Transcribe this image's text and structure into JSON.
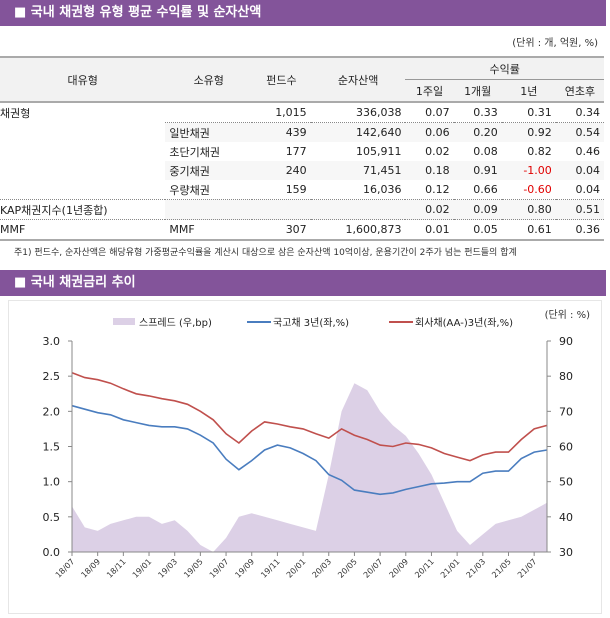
{
  "section1": {
    "title": "■ 국내 채권형 유형 평균 수익률 및 순자산액",
    "unit": "(단위 : 개, 억원, %)"
  },
  "table": {
    "headers": {
      "major": "대유형",
      "minor": "소유형",
      "funds": "펀드수",
      "assets": "순자산액",
      "returns": "수익률",
      "w1": "1주일",
      "m1": "1개월",
      "y1": "1년",
      "ytd": "연초후"
    },
    "rows": [
      {
        "major": "채권형",
        "minor": "",
        "funds": "1,015",
        "assets": "336,038",
        "w1": "0.07",
        "m1": "0.33",
        "y1": "0.31",
        "ytd": "0.34"
      },
      {
        "major": "",
        "minor": "일반채권",
        "funds": "439",
        "assets": "142,640",
        "w1": "0.06",
        "m1": "0.20",
        "y1": "0.92",
        "ytd": "0.54"
      },
      {
        "major": "",
        "minor": "초단기채권",
        "funds": "177",
        "assets": "105,911",
        "w1": "0.02",
        "m1": "0.08",
        "y1": "0.82",
        "ytd": "0.46"
      },
      {
        "major": "",
        "minor": "중기채권",
        "funds": "240",
        "assets": "71,451",
        "w1": "0.18",
        "m1": "0.91",
        "y1": "-1.00",
        "ytd": "0.04"
      },
      {
        "major": "",
        "minor": "우량채권",
        "funds": "159",
        "assets": "16,036",
        "w1": "0.12",
        "m1": "0.66",
        "y1": "-0.60",
        "ytd": "0.04"
      },
      {
        "major": "KAP채권지수(1년종합)",
        "minor": "",
        "funds": "",
        "assets": "",
        "w1": "0.02",
        "m1": "0.09",
        "y1": "0.80",
        "ytd": "0.51"
      },
      {
        "major": "MMF",
        "minor": "MMF",
        "funds": "307",
        "assets": "1,600,873",
        "w1": "0.01",
        "m1": "0.05",
        "y1": "0.61",
        "ytd": "0.36"
      }
    ],
    "note": "주1) 펀드수, 순자산액은 해당유형 가중평균수익률을 계산시 대상으로 삼은 순자산액 10억이상, 운용기간이 2주가 넘는 펀드들의 합계"
  },
  "section2": {
    "title": "■ 국내 채권금리 추이",
    "unit": "(단위 : %)"
  },
  "chart_data": {
    "type": "line",
    "x": [
      "18/07",
      "18/08",
      "18/09",
      "18/10",
      "18/11",
      "18/12",
      "19/01",
      "19/02",
      "19/03",
      "19/04",
      "19/05",
      "19/06",
      "19/07",
      "19/08",
      "19/09",
      "19/10",
      "19/11",
      "19/12",
      "20/01",
      "20/02",
      "20/03",
      "20/04",
      "20/05",
      "20/06",
      "20/07",
      "20/08",
      "20/09",
      "20/10",
      "20/11",
      "20/12",
      "21/01",
      "21/02",
      "21/03",
      "21/04",
      "21/05",
      "21/06",
      "21/07",
      "21/08"
    ],
    "xticks": [
      "18/07",
      "18/09",
      "18/11",
      "19/01",
      "19/03",
      "19/05",
      "19/07",
      "19/09",
      "19/11",
      "20/01",
      "20/03",
      "20/05",
      "20/07",
      "20/09",
      "20/11",
      "21/01",
      "21/03",
      "21/05",
      "21/07"
    ],
    "left_axis": {
      "ylim": [
        0,
        3
      ],
      "ticks": [
        "0.0",
        "0.5",
        "1.0",
        "1.5",
        "2.0",
        "2.5",
        "3.0"
      ]
    },
    "right_axis": {
      "ylim": [
        30,
        90
      ],
      "ticks": [
        "30",
        "40",
        "50",
        "60",
        "70",
        "80",
        "90"
      ]
    },
    "legend_position": "top",
    "series": [
      {
        "name": "스프레드 (우,bp)",
        "type": "area",
        "axis": "right",
        "color": "#dcd0e6",
        "values": [
          43,
          37,
          36,
          38,
          39,
          40,
          40,
          38,
          39,
          36,
          32,
          30,
          34,
          40,
          41,
          40,
          39,
          38,
          37,
          36,
          52,
          70,
          78,
          76,
          70,
          66,
          63,
          58,
          52,
          44,
          36,
          32,
          35,
          38,
          39,
          40,
          42,
          44
        ]
      },
      {
        "name": "국고채 3년(좌,%)",
        "type": "line",
        "axis": "left",
        "color": "#4a7dbf",
        "values": [
          2.08,
          2.03,
          1.98,
          1.95,
          1.88,
          1.84,
          1.8,
          1.78,
          1.78,
          1.75,
          1.66,
          1.55,
          1.32,
          1.17,
          1.3,
          1.45,
          1.52,
          1.48,
          1.4,
          1.3,
          1.1,
          1.02,
          0.88,
          0.85,
          0.82,
          0.84,
          0.89,
          0.93,
          0.97,
          0.98,
          1.0,
          1.0,
          1.12,
          1.15,
          1.15,
          1.33,
          1.42,
          1.45
        ]
      },
      {
        "name": "회사채(AA-)3년(좌,%)",
        "type": "line",
        "axis": "left",
        "color": "#c0504d",
        "values": [
          2.55,
          2.48,
          2.45,
          2.4,
          2.32,
          2.25,
          2.22,
          2.18,
          2.15,
          2.1,
          2.0,
          1.88,
          1.68,
          1.55,
          1.72,
          1.85,
          1.82,
          1.78,
          1.75,
          1.68,
          1.62,
          1.75,
          1.66,
          1.6,
          1.52,
          1.5,
          1.55,
          1.53,
          1.48,
          1.4,
          1.35,
          1.3,
          1.38,
          1.42,
          1.42,
          1.6,
          1.75,
          1.8
        ]
      }
    ]
  }
}
